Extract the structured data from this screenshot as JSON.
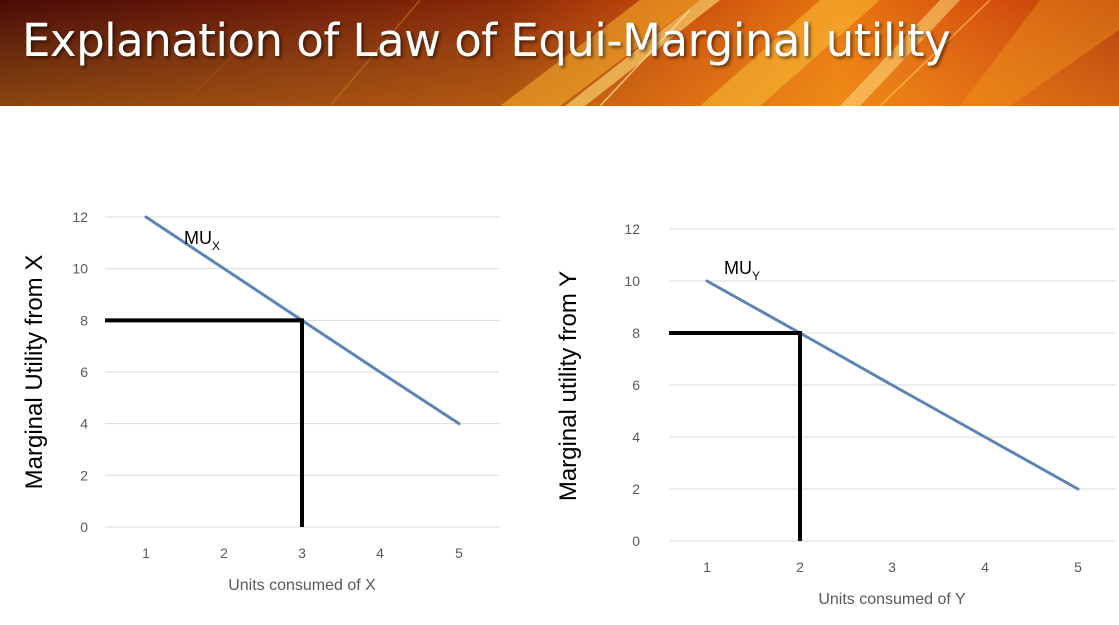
{
  "slide": {
    "title": "Explanation of Law of Equi-Marginal utility"
  },
  "colors": {
    "series_line": "#5b85b6",
    "grid": "#d9d9d9",
    "guide": "#000000"
  },
  "chart_data": [
    {
      "type": "line",
      "categories": [
        "1",
        "2",
        "3",
        "4",
        "5"
      ],
      "series": [
        {
          "name": "MUX",
          "label_main": "MU",
          "label_sub": "X",
          "values": [
            12,
            10,
            8,
            6,
            4
          ]
        }
      ],
      "xlabel": "Units consumed of X",
      "ylabel": "Marginal Utility from X",
      "yticks": [
        "0",
        "2",
        "4",
        "6",
        "8",
        "10",
        "12"
      ],
      "ylim": [
        0,
        12
      ],
      "grid": true,
      "guide": {
        "x": 3,
        "y": 8
      }
    },
    {
      "type": "line",
      "categories": [
        "1",
        "2",
        "3",
        "4",
        "5"
      ],
      "series": [
        {
          "name": "MUY",
          "label_main": "MU",
          "label_sub": "Y",
          "values": [
            10,
            8,
            6,
            4,
            2
          ]
        }
      ],
      "xlabel": "Units consumed of Y",
      "ylabel": "Marginal utility from Y",
      "yticks": [
        "0",
        "2",
        "4",
        "6",
        "8",
        "10",
        "12"
      ],
      "ylim": [
        0,
        12
      ],
      "grid": true,
      "guide": {
        "x": 2,
        "y": 8
      }
    }
  ]
}
